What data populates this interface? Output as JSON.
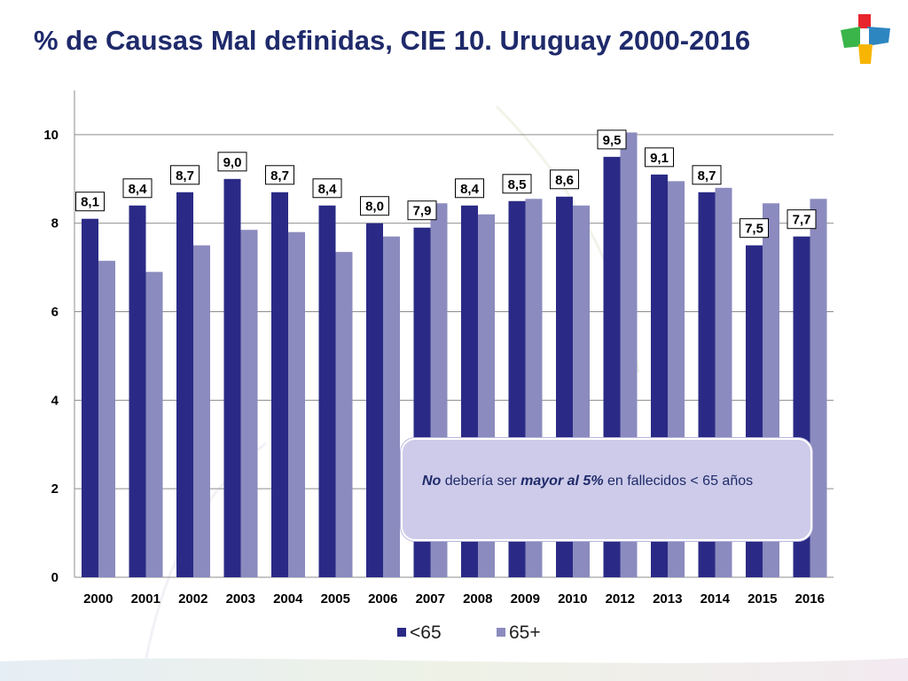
{
  "slide": {
    "title": "% de Causas Mal definidas, CIE 10. Uruguay 2000-2016",
    "colors": {
      "title": "#1f2a6b",
      "logo_red": "#e8242c",
      "logo_green": "#3ab54a",
      "logo_blue": "#2e86c1"
    }
  },
  "note": {
    "part1": "No",
    "part2": " debería ser ",
    "part3": "mayor al 5%",
    "part4": " en fallecidos < 65 años"
  },
  "chart_data": {
    "type": "bar",
    "title": "",
    "xlabel": "",
    "ylabel": "",
    "ylim": [
      0,
      11
    ],
    "yticks": [
      0,
      2,
      4,
      6,
      8,
      10
    ],
    "grid": true,
    "legend_position": "bottom",
    "categories": [
      "2000",
      "2001",
      "2002",
      "2003",
      "2004",
      "2005",
      "2006",
      "2007",
      "2008",
      "2009",
      "2010",
      "2012",
      "2013",
      "2014",
      "2015",
      "2016"
    ],
    "series": [
      {
        "name": "<65",
        "color": "#2a2a86",
        "values": [
          8.1,
          8.4,
          8.7,
          9.0,
          8.7,
          8.4,
          8.0,
          7.9,
          8.4,
          8.5,
          8.6,
          9.5,
          9.1,
          8.7,
          7.5,
          7.7
        ],
        "labels": [
          "8,1",
          "8,4",
          "8,7",
          "9,0",
          "8,7",
          "8,4",
          "8,0",
          "7,9",
          "8,4",
          "8,5",
          "8,6",
          "9,5",
          "9,1",
          "8,7",
          "7,5",
          "7,7"
        ]
      },
      {
        "name": "65+",
        "color": "#8b8bbf",
        "values": [
          7.15,
          6.9,
          7.5,
          7.85,
          7.8,
          7.35,
          7.7,
          8.45,
          8.2,
          8.55,
          8.4,
          10.05,
          8.95,
          8.8,
          8.45,
          8.55
        ]
      }
    ]
  }
}
